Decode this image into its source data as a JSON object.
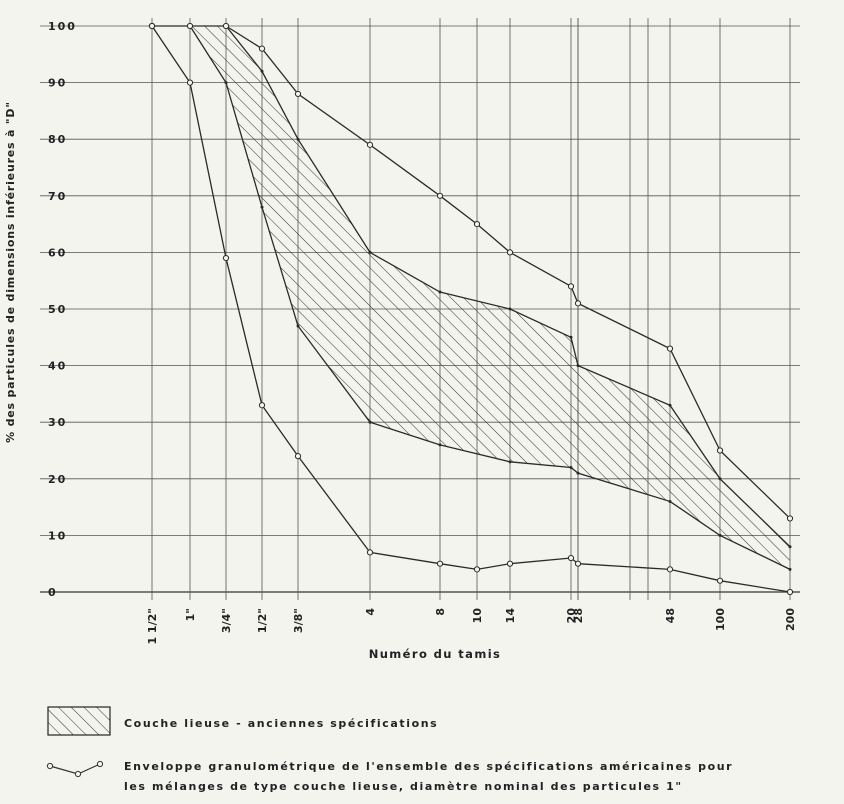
{
  "chart_data": {
    "type": "line",
    "ylabel": "% des particules de dimensions inférieures à \"D\"",
    "xlabel": "Numéro du tamis",
    "ylim": [
      0,
      100
    ],
    "yticks": [
      "0",
      "10",
      "20",
      "30",
      "40",
      "50",
      "60",
      "70",
      "80",
      "90",
      "100"
    ],
    "x_categories": [
      "1 1/2\"",
      "1\"",
      "3/4\"",
      "1/2\"",
      "3/8\"",
      "4",
      "8",
      "10",
      "14",
      "20",
      "28",
      "48",
      "100",
      "200"
    ],
    "envelope_upper": {
      "x": [
        "1 1/2\"",
        "1\"",
        "3/4\"",
        "1/2\"",
        "3/8\"",
        "4",
        "8",
        "10",
        "14",
        "20",
        "28",
        "48",
        "100",
        "200"
      ],
      "y": [
        100,
        100,
        100,
        96,
        88,
        79,
        70,
        65,
        60,
        54,
        51,
        43,
        25,
        13
      ]
    },
    "envelope_lower": {
      "x": [
        "1 1/2\"",
        "1\"",
        "3/4\"",
        "1/2\"",
        "3/8\"",
        "4",
        "8",
        "10",
        "14",
        "20",
        "28",
        "48",
        "100",
        "200"
      ],
      "y": [
        100,
        90,
        59,
        33,
        24,
        7,
        5,
        4,
        5,
        6,
        5,
        4,
        2,
        0
      ]
    },
    "old_spec_upper": {
      "x": [
        "3/4\"",
        "1/2\"",
        "3/8\"",
        "4",
        "8",
        "14",
        "20",
        "28",
        "48",
        "100",
        "200"
      ],
      "y": [
        100,
        92,
        80,
        60,
        53,
        50,
        45,
        40,
        33,
        20,
        8
      ]
    },
    "old_spec_lower": {
      "x": [
        "1\"",
        "3/4\"",
        "1/2\"",
        "3/8\"",
        "4",
        "8",
        "14",
        "20",
        "28",
        "48",
        "100",
        "200"
      ],
      "y": [
        100,
        90,
        68,
        47,
        30,
        26,
        23,
        22,
        21,
        16,
        10,
        4
      ]
    },
    "grid": true
  },
  "legend": {
    "hatched_label": "Couche lieuse   -   anciennes spécifications",
    "line_label_1": "Enveloppe granulométrique de l'ensemble des spécifications américaines pour",
    "line_label_2": "les mélanges de type couche lieuse, diamètre nominal des particules  1\""
  }
}
